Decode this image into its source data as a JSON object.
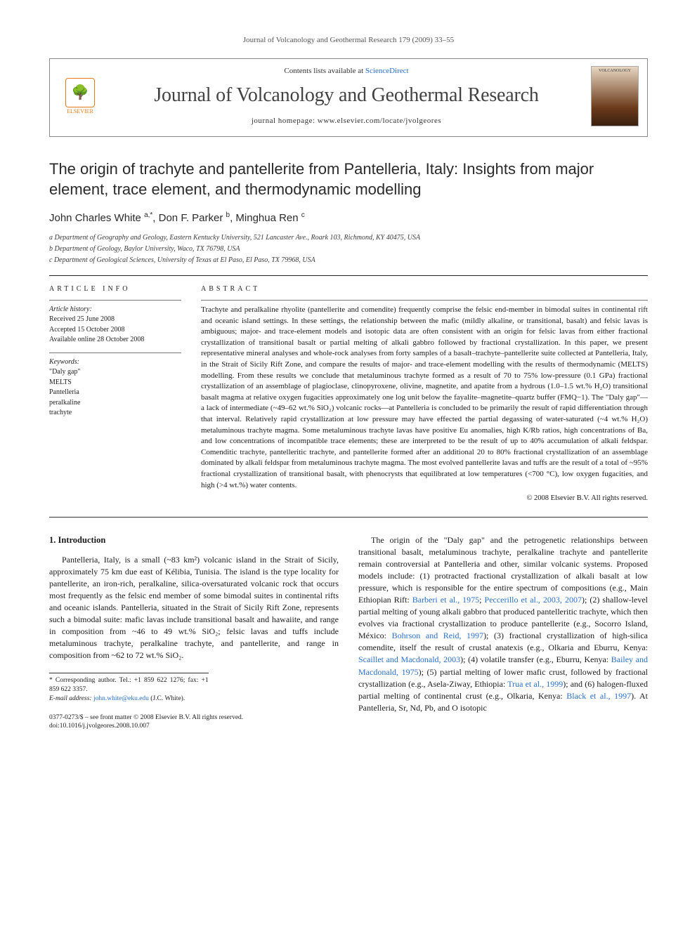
{
  "running_head": "Journal of Volcanology and Geothermal Research 179 (2009) 33–55",
  "header": {
    "contents_prefix": "Contents lists available at ",
    "contents_link": "ScienceDirect",
    "journal_name": "Journal of Volcanology and Geothermal Research",
    "homepage_label": "journal homepage: www.elsevier.com/locate/jvolgeores",
    "publisher_logo_label": "ELSEVIER",
    "cover_label": "VOLCANOLOGY"
  },
  "article": {
    "title": "The origin of trachyte and pantellerite from Pantelleria, Italy: Insights from major element, trace element, and thermodynamic modelling",
    "authors_html": "John Charles White <sup>a,*</sup>, Don F. Parker <sup>b</sup>, Minghua Ren <sup>c</sup>",
    "affiliations": [
      "a Department of Geography and Geology, Eastern Kentucky University, 521 Lancaster Ave., Roark 103, Richmond, KY 40475, USA",
      "b Department of Geology, Baylor University, Waco, TX 76798, USA",
      "c Department of Geological Sciences, University of Texas at El Paso, El Paso, TX 79968, USA"
    ]
  },
  "article_info": {
    "heading": "ARTICLE INFO",
    "history_title": "Article history:",
    "history": [
      "Received 25 June 2008",
      "Accepted 15 October 2008",
      "Available online 28 October 2008"
    ],
    "keywords_title": "Keywords:",
    "keywords": [
      "\"Daly gap\"",
      "MELTS",
      "Pantelleria",
      "peralkaline",
      "trachyte"
    ]
  },
  "abstract": {
    "heading": "ABSTRACT",
    "text": "Trachyte and peralkaline rhyolite (pantellerite and comendite) frequently comprise the felsic end-member in bimodal suites in continental rift and oceanic island settings. In these settings, the relationship between the mafic (mildly alkaline, or transitional, basalt) and felsic lavas is ambiguous; major- and trace-element models and isotopic data are often consistent with an origin for felsic lavas from either fractional crystallization of transitional basalt or partial melting of alkali gabbro followed by fractional crystallization. In this paper, we present representative mineral analyses and whole-rock analyses from forty samples of a basalt–trachyte–pantellerite suite collected at Pantelleria, Italy, in the Strait of Sicily Rift Zone, and compare the results of major- and trace-element modelling with the results of thermodynamic (MELTS) modelling. From these results we conclude that metaluminous trachyte formed as a result of 70 to 75% low-pressure (0.1 GPa) fractional crystallization of an assemblage of plagioclase, clinopyroxene, olivine, magnetite, and apatite from a hydrous (1.0–1.5 wt.% H₂O) transitional basalt magma at relative oxygen fugacities approximately one log unit below the fayalite–magnetite–quartz buffer (FMQ−1). The \"Daly gap\"—a lack of intermediate (~49–62 wt.% SiO₂) volcanic rocks—at Pantelleria is concluded to be primarily the result of rapid differentiation through that interval. Relatively rapid crystallization at low pressure may have effected the partial degassing of water-saturated (~4 wt.% H₂O) metaluminous trachyte magma. Some metaluminous trachyte lavas have positive Eu anomalies, high K/Rb ratios, high concentrations of Ba, and low concentrations of incompatible trace elements; these are interpreted to be the result of up to 40% accumulation of alkali feldspar. Comenditic trachyte, pantelleritic trachyte, and pantellerite formed after an additional 20 to 80% fractional crystallization of an assemblage dominated by alkali feldspar from metaluminous trachyte magma. The most evolved pantellerite lavas and tuffs are the result of a total of ~95% fractional crystallization of transitional basalt, with phenocrysts that equilibrated at low temperatures (<700 °C), low oxygen fugacities, and high (>4 wt.%) water contents.",
    "copyright": "© 2008 Elsevier B.V. All rights reserved."
  },
  "body": {
    "section1_head": "1. Introduction",
    "col1_p1": "Pantelleria, Italy, is a small (~83 km²) volcanic island in the Strait of Sicily, approximately 75 km due east of Kélibia, Tunisia. The island is the type locality for pantellerite, an iron-rich, peralkaline, silica-oversaturated volcanic rock that occurs most frequently as the felsic end member of some bimodal suites in continental rifts and oceanic islands. Pantelleria, situated in the Strait of Sicily Rift Zone, represents such a bimodal suite: mafic lavas include transitional basalt and hawaiite, and range in composition from ~46 to 49 wt.% SiO₂; felsic lavas and tuffs include metaluminous trachyte, peralkaline trachyte, and pantellerite, and range in composition from ~62 to 72 wt.% SiO₂.",
    "col2_p1": "The origin of the \"Daly gap\" and the petrogenetic relationships between transitional basalt, metaluminous trachyte, peralkaline trachyte and pantellerite remain controversial at Pantelleria and other, similar volcanic systems. Proposed models include: (1) protracted fractional crystallization of alkali basalt at low pressure, which is responsible for the entire spectrum of compositions (e.g., Main Ethiopian Rift: ",
    "col2_refs": {
      "r1": "Barberi et al., 1975",
      "r2": "Peccerillo et al., 2003, 2007",
      "r3": "Bohrson and Reid, 1997",
      "r4": "Scaillet and Macdonald, 2003",
      "r5": "Bailey and Macdonald, 1975",
      "r6": "Trua et al., 1999",
      "r7": "Black et al., 1997"
    },
    "col2_p1b": "); (2) shallow-level partial melting of young alkali gabbro that produced pantelleritic trachyte, which then evolves via fractional crystallization to produce pantellerite (e.g., Socorro Island, México: ",
    "col2_p1c": "); (3) fractional crystallization of high-silica comendite, itself the result of crustal anatexis (e.g., Olkaria and Eburru, Kenya: ",
    "col2_p1d": "); (4) volatile transfer (e.g., Eburru, Kenya: ",
    "col2_p1e": "); (5) partial melting of lower mafic crust, followed by fractional crystallization (e.g., Asela-Ziway, Ethiopia: ",
    "col2_p1f": "); and (6) halogen-fluxed partial melting of continental crust (e.g., Olkaria, Kenya: ",
    "col2_p1g": "). At Pantelleria, Sr, Nd, Pb, and O isotopic"
  },
  "footnote": {
    "corr": "* Corresponding author. Tel.: +1 859 622 1276; fax: +1 859 622 3357.",
    "email_label": "E-mail address: ",
    "email": "john.white@eku.edu",
    "email_suffix": " (J.C. White)."
  },
  "doi": {
    "line1": "0377-0273/$ – see front matter © 2008 Elsevier B.V. All rights reserved.",
    "line2": "doi:10.1016/j.jvolgeores.2008.10.007"
  }
}
